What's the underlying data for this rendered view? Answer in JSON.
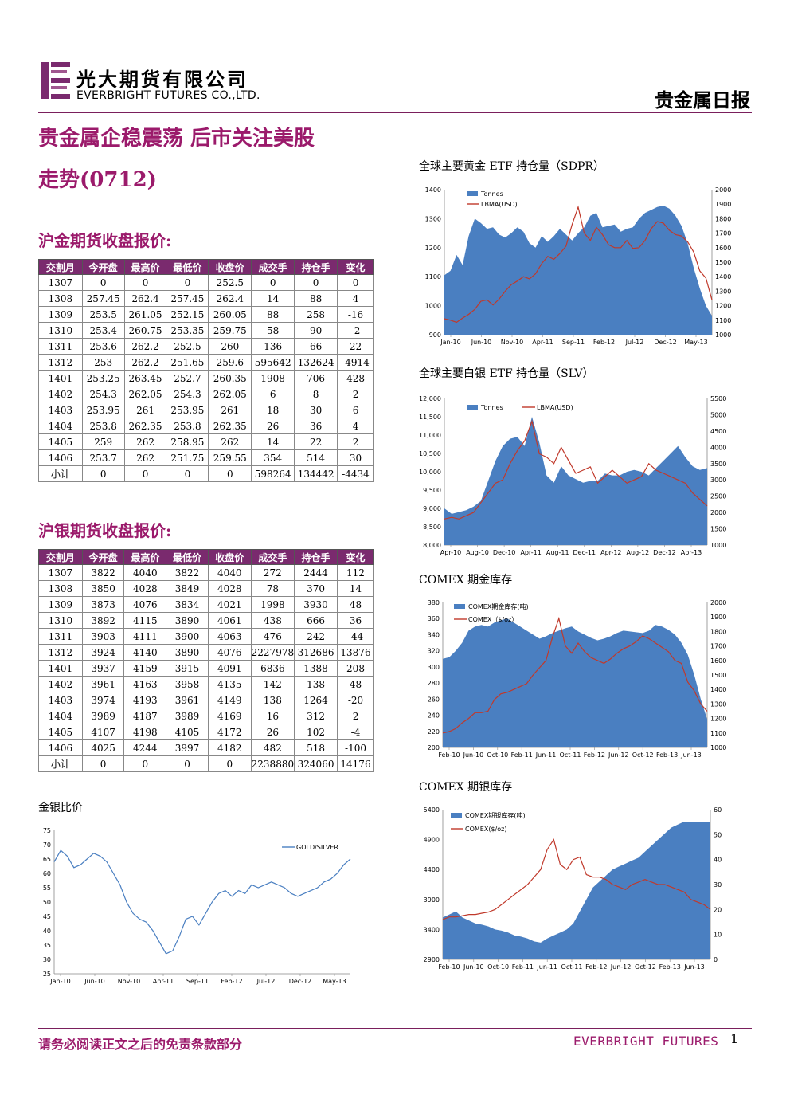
{
  "header": {
    "company_cn": "光大期货有限公司",
    "company_en": "EVERBRIGHT FUTURES CO.,LTD.",
    "report_type": "贵金属日报"
  },
  "headline": {
    "line1": "贵金属企稳震荡 后市关注美股",
    "line2": "走势(0712)"
  },
  "gold_futures": {
    "title": "沪金期货收盘报价:",
    "columns": [
      "交割月",
      "今开盘",
      "最高价",
      "最低价",
      "收盘价",
      "成交手",
      "持仓手",
      "变化"
    ],
    "rows": [
      [
        "1307",
        "0",
        "0",
        "0",
        "252.5",
        "0",
        "0",
        "0"
      ],
      [
        "1308",
        "257.45",
        "262.4",
        "257.45",
        "262.4",
        "14",
        "88",
        "4"
      ],
      [
        "1309",
        "253.5",
        "261.05",
        "252.15",
        "260.05",
        "88",
        "258",
        "-16"
      ],
      [
        "1310",
        "253.4",
        "260.75",
        "253.35",
        "259.75",
        "58",
        "90",
        "-2"
      ],
      [
        "1311",
        "253.6",
        "262.2",
        "252.5",
        "260",
        "136",
        "66",
        "22"
      ],
      [
        "1312",
        "253",
        "262.2",
        "251.65",
        "259.6",
        "595642",
        "132624",
        "-4914"
      ],
      [
        "1401",
        "253.25",
        "263.45",
        "252.7",
        "260.35",
        "1908",
        "706",
        "428"
      ],
      [
        "1402",
        "254.3",
        "262.05",
        "254.3",
        "262.05",
        "6",
        "8",
        "2"
      ],
      [
        "1403",
        "253.95",
        "261",
        "253.95",
        "261",
        "18",
        "30",
        "6"
      ],
      [
        "1404",
        "253.8",
        "262.35",
        "253.8",
        "262.35",
        "26",
        "36",
        "4"
      ],
      [
        "1405",
        "259",
        "262",
        "258.95",
        "262",
        "14",
        "22",
        "2"
      ],
      [
        "1406",
        "253.7",
        "262",
        "251.75",
        "259.55",
        "354",
        "514",
        "30"
      ],
      [
        "小计",
        "0",
        "0",
        "0",
        "0",
        "598264",
        "134442",
        "-4434"
      ]
    ]
  },
  "silver_futures": {
    "title": "沪银期货收盘报价:",
    "columns": [
      "交割月",
      "今开盘",
      "最高价",
      "最低价",
      "收盘价",
      "成交手",
      "持仓手",
      "变化"
    ],
    "rows": [
      [
        "1307",
        "3822",
        "4040",
        "3822",
        "4040",
        "272",
        "2444",
        "112"
      ],
      [
        "1308",
        "3850",
        "4028",
        "3849",
        "4028",
        "78",
        "370",
        "14"
      ],
      [
        "1309",
        "3873",
        "4076",
        "3834",
        "4021",
        "1998",
        "3930",
        "48"
      ],
      [
        "1310",
        "3892",
        "4115",
        "3890",
        "4061",
        "438",
        "666",
        "36"
      ],
      [
        "1311",
        "3903",
        "4111",
        "3900",
        "4063",
        "476",
        "242",
        "-44"
      ],
      [
        "1312",
        "3924",
        "4140",
        "3890",
        "4076",
        "2227978",
        "312686",
        "13876"
      ],
      [
        "1401",
        "3937",
        "4159",
        "3915",
        "4091",
        "6836",
        "1388",
        "208"
      ],
      [
        "1402",
        "3961",
        "4163",
        "3958",
        "4135",
        "142",
        "138",
        "48"
      ],
      [
        "1403",
        "3974",
        "4193",
        "3961",
        "4149",
        "138",
        "1264",
        "-20"
      ],
      [
        "1404",
        "3989",
        "4187",
        "3989",
        "4169",
        "16",
        "312",
        "2"
      ],
      [
        "1405",
        "4107",
        "4198",
        "4105",
        "4172",
        "26",
        "102",
        "-4"
      ],
      [
        "1406",
        "4025",
        "4244",
        "3997",
        "4182",
        "482",
        "518",
        "-100"
      ],
      [
        "小计",
        "0",
        "0",
        "0",
        "0",
        "2238880",
        "324060",
        "14176"
      ]
    ]
  },
  "chart_data": [
    {
      "id": "gold-etf",
      "title": "全球主要黄金 ETF 持仓量（SDPR）",
      "type": "area+line",
      "x_labels": [
        "Jan-10",
        "Jun-10",
        "Nov-10",
        "Apr-11",
        "Sep-11",
        "Feb-12",
        "Jul-12",
        "Dec-12",
        "May-13"
      ],
      "y_left": {
        "min": 900,
        "max": 1400,
        "ticks": [
          "900",
          "1000",
          "1100",
          "1200",
          "1300",
          "1400"
        ]
      },
      "y_right": {
        "min": 1000,
        "max": 2000,
        "ticks": [
          "1000",
          "1100",
          "1200",
          "1300",
          "1400",
          "1500",
          "1600",
          "1700",
          "1800",
          "1900",
          "2000"
        ]
      },
      "series": [
        {
          "name": "Tonnes",
          "kind": "area",
          "axis": "left",
          "color": "#4a7fc1",
          "values": [
            1105,
            1120,
            1175,
            1140,
            1240,
            1300,
            1285,
            1265,
            1270,
            1245,
            1235,
            1250,
            1270,
            1255,
            1215,
            1200,
            1240,
            1220,
            1240,
            1265,
            1245,
            1225,
            1250,
            1270,
            1310,
            1320,
            1270,
            1275,
            1280,
            1255,
            1265,
            1270,
            1300,
            1320,
            1330,
            1340,
            1345,
            1335,
            1310,
            1275,
            1215,
            1130,
            1060,
            1000,
            965
          ]
        },
        {
          "name": "LBMA(USD)",
          "kind": "line",
          "axis": "right",
          "color": "#c0392b",
          "values": [
            1110,
            1100,
            1085,
            1115,
            1140,
            1175,
            1230,
            1240,
            1205,
            1245,
            1300,
            1345,
            1370,
            1400,
            1385,
            1420,
            1490,
            1540,
            1520,
            1560,
            1610,
            1760,
            1880,
            1700,
            1650,
            1740,
            1690,
            1620,
            1600,
            1600,
            1650,
            1595,
            1600,
            1650,
            1730,
            1780,
            1770,
            1720,
            1690,
            1680,
            1640,
            1570,
            1440,
            1390,
            1240
          ]
        }
      ]
    },
    {
      "id": "silver-etf",
      "title": "全球主要白银 ETF 持仓量（SLV）",
      "type": "area+line",
      "x_labels": [
        "Apr-10",
        "Aug-10",
        "Dec-10",
        "Apr-11",
        "Aug-11",
        "Dec-11",
        "Apr-12",
        "Aug-12",
        "Dec-12",
        "Apr-13"
      ],
      "y_left": {
        "min": 8000,
        "max": 12000,
        "ticks": [
          "8,000",
          "8,500",
          "9,000",
          "9,500",
          "10,000",
          "10,500",
          "11,000",
          "11,500",
          "12,000"
        ]
      },
      "y_right": {
        "min": 1000,
        "max": 5500,
        "ticks": [
          "1000",
          "1500",
          "2000",
          "2500",
          "3000",
          "3500",
          "4000",
          "4500",
          "5000",
          "5500"
        ]
      },
      "series": [
        {
          "name": "Tonnes",
          "kind": "area",
          "axis": "left",
          "color": "#4a7fc1",
          "values": [
            9000,
            8850,
            8900,
            8950,
            9050,
            9200,
            9750,
            10300,
            10700,
            10900,
            10950,
            10700,
            11500,
            10800,
            9900,
            9700,
            10150,
            9900,
            9800,
            9700,
            9750,
            9750,
            9950,
            9900,
            9900,
            10000,
            10050,
            10000,
            9900,
            10100,
            10300,
            10500,
            10700,
            10400,
            10150,
            10050,
            10100
          ]
        },
        {
          "name": "LBMA(USD)",
          "kind": "line",
          "axis": "right",
          "color": "#c0392b",
          "values": [
            1800,
            1850,
            1800,
            1900,
            2000,
            2300,
            2600,
            2900,
            3000,
            3500,
            3900,
            4200,
            4800,
            3800,
            3700,
            3500,
            4000,
            3600,
            3200,
            3300,
            3400,
            2900,
            3100,
            3300,
            3100,
            2900,
            3000,
            3100,
            3500,
            3300,
            3200,
            3100,
            3000,
            2900,
            2600,
            2400,
            2200
          ]
        }
      ]
    },
    {
      "id": "comex-gold",
      "title": "COMEX 期金库存",
      "type": "area+line",
      "x_labels": [
        "Feb-10",
        "Jun-10",
        "Oct-10",
        "Feb-11",
        "Jun-11",
        "Oct-11",
        "Feb-12",
        "Jun-12",
        "Oct-12",
        "Feb-13",
        "Jun-13"
      ],
      "y_left": {
        "min": 200,
        "max": 380,
        "ticks": [
          "200",
          "220",
          "240",
          "260",
          "280",
          "300",
          "320",
          "340",
          "360",
          "380"
        ]
      },
      "y_right": {
        "min": 1000,
        "max": 2000,
        "ticks": [
          "1000",
          "1100",
          "1200",
          "1300",
          "1400",
          "1500",
          "1600",
          "1700",
          "1800",
          "1900",
          "2000"
        ]
      },
      "series": [
        {
          "name": "COMEX期金库存(吨)",
          "kind": "area",
          "axis": "left",
          "color": "#4a7fc1",
          "values": [
            310,
            312,
            320,
            330,
            345,
            350,
            352,
            350,
            355,
            358,
            360,
            355,
            350,
            345,
            340,
            335,
            338,
            342,
            345,
            348,
            350,
            344,
            340,
            336,
            333,
            335,
            338,
            342,
            345,
            344,
            343,
            342,
            345,
            352,
            350,
            346,
            340,
            330,
            315,
            290,
            260,
            235
          ]
        },
        {
          "name": "COMEX（$/oz）",
          "kind": "line",
          "axis": "right",
          "color": "#c0392b",
          "values": [
            1100,
            1110,
            1130,
            1170,
            1200,
            1240,
            1240,
            1250,
            1330,
            1370,
            1380,
            1400,
            1420,
            1440,
            1500,
            1550,
            1600,
            1760,
            1890,
            1700,
            1650,
            1720,
            1660,
            1620,
            1600,
            1580,
            1610,
            1650,
            1680,
            1700,
            1730,
            1770,
            1750,
            1720,
            1690,
            1660,
            1600,
            1580,
            1450,
            1390,
            1300,
            1250
          ]
        }
      ]
    },
    {
      "id": "comex-silver",
      "title": "COMEX 期银库存",
      "type": "area+line",
      "x_labels": [
        "Feb-10",
        "Jun-10",
        "Oct-10",
        "Feb-11",
        "Jun-11",
        "Oct-11",
        "Feb-12",
        "Jun-12",
        "Oct-12",
        "Feb-13",
        "Jun-13"
      ],
      "y_left": {
        "min": 2900,
        "max": 5400,
        "ticks": [
          "2900",
          "3400",
          "3900",
          "4400",
          "4900",
          "5400"
        ]
      },
      "y_right": {
        "min": 0,
        "max": 60,
        "ticks": [
          "0",
          "10",
          "20",
          "30",
          "40",
          "50",
          "60"
        ]
      },
      "series": [
        {
          "name": "COMEX期银库存(吨)",
          "kind": "area",
          "axis": "left",
          "color": "#4a7fc1",
          "values": [
            3600,
            3650,
            3700,
            3600,
            3550,
            3500,
            3480,
            3450,
            3400,
            3380,
            3350,
            3300,
            3280,
            3250,
            3200,
            3180,
            3250,
            3300,
            3350,
            3400,
            3500,
            3700,
            3900,
            4100,
            4200,
            4300,
            4400,
            4450,
            4500,
            4550,
            4600,
            4700,
            4800,
            4900,
            5000,
            5100,
            5150,
            5200,
            5200,
            5200,
            5200,
            5200
          ]
        },
        {
          "name": "COMEX($/oz)",
          "kind": "line",
          "axis": "right",
          "color": "#c0392b",
          "values": [
            16,
            17,
            17,
            17.5,
            18,
            18,
            18.5,
            19,
            20,
            22,
            24,
            26,
            28,
            30,
            33,
            36,
            44,
            48,
            38,
            36,
            40,
            41,
            34,
            33,
            33,
            32,
            30,
            29,
            28,
            30,
            31,
            32,
            31,
            30,
            30,
            29,
            28,
            27,
            24,
            23,
            22,
            20
          ]
        }
      ]
    },
    {
      "id": "gold-silver-ratio",
      "title": "金银比价",
      "type": "line",
      "x_labels": [
        "Jan-10",
        "Jun-10",
        "Nov-10",
        "Apr-11",
        "Sep-11",
        "Feb-12",
        "Jul-12",
        "Dec-12",
        "May-13"
      ],
      "y": {
        "min": 25,
        "max": 75,
        "ticks": [
          "25",
          "30",
          "35",
          "40",
          "45",
          "50",
          "55",
          "60",
          "65",
          "70",
          "75"
        ]
      },
      "series": [
        {
          "name": "GOLD/SILVER",
          "kind": "line",
          "color": "#4a7fc1",
          "values": [
            64,
            68,
            66,
            62,
            63,
            65,
            67,
            66,
            64,
            60,
            56,
            50,
            46,
            44,
            43,
            40,
            36,
            32,
            33,
            38,
            44,
            45,
            42,
            46,
            50,
            53,
            54,
            52,
            54,
            53,
            56,
            55,
            56,
            57,
            56,
            55,
            53,
            52,
            53,
            54,
            55,
            57,
            58,
            60,
            63,
            65
          ]
        }
      ]
    }
  ],
  "footer": {
    "disclaimer": "请务必阅读正文之后的免责条款部分",
    "brand": "EVERBRIGHT FUTURES",
    "page_number": "1"
  }
}
